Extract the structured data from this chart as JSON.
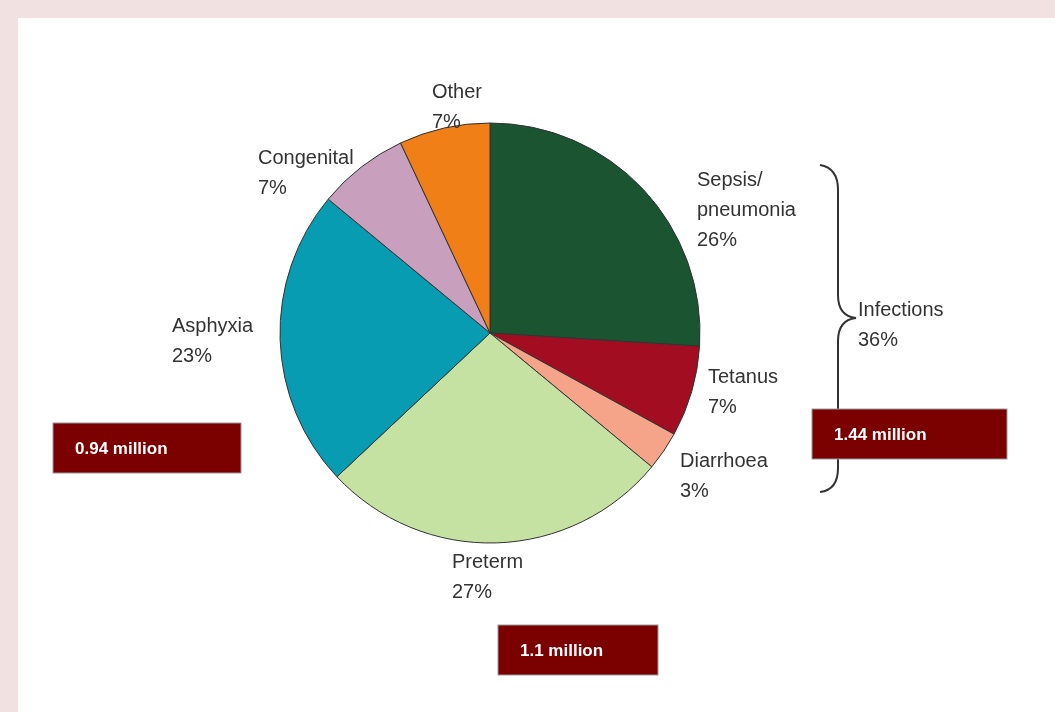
{
  "chart_data": {
    "type": "pie",
    "categories": [
      "Sepsis/pneumonia",
      "Tetanus",
      "Diarrhoea",
      "Preterm",
      "Asphyxia",
      "Congenital",
      "Other"
    ],
    "values": [
      26,
      7,
      3,
      27,
      23,
      7,
      7
    ],
    "value_labels": [
      "26%",
      "7%",
      "3%",
      "27%",
      "23%",
      "7%",
      "7%"
    ],
    "colors": [
      "#1b5430",
      "#a30d22",
      "#f5a48a",
      "#c6e2a2",
      "#089cb2",
      "#c89fbd",
      "#ef7f16"
    ],
    "annotations": [
      "Infections 36%",
      "0.94 million",
      "1.44 million",
      "1.1 million"
    ]
  }
}
